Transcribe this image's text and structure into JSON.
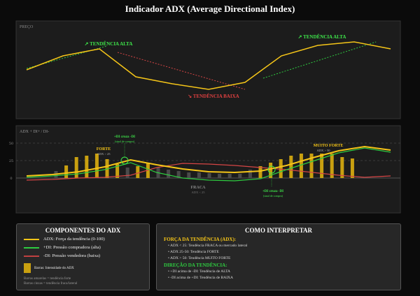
{
  "title": "Indicador ADX (Average Directional Index)",
  "colors": {
    "adx": "#f5c518",
    "di_plus": "#2ecc40",
    "di_minus": "#d64545",
    "bar_strong": "#c9a010",
    "bar_weak": "#4a4a4a"
  },
  "chart_data": [
    {
      "type": "line",
      "label": "PREÇO",
      "x": [
        0,
        1,
        2,
        3,
        4,
        5,
        6,
        7,
        8,
        9,
        10
      ],
      "price": [
        70,
        90,
        100,
        60,
        50,
        42,
        52,
        90,
        105,
        110,
        100
      ],
      "ylim": [
        0,
        140
      ],
      "annotations": [
        {
          "text": "↗ TENDÊNCIA ALTA",
          "kind": "up",
          "from": [
            0,
            72
          ],
          "to": [
            2.2,
            104
          ]
        },
        {
          "text": "↘ TENDÊNCIA BAIXA",
          "kind": "down",
          "from": [
            2.5,
            95
          ],
          "to": [
            6,
            42
          ]
        },
        {
          "text": "↗ TENDÊNCIA ALTA",
          "kind": "up",
          "from": [
            6.5,
            58
          ],
          "to": [
            9.6,
            110
          ]
        }
      ]
    },
    {
      "type": "line",
      "label": "ADX + DI+ / DI-",
      "yticks": [
        "50",
        "25",
        "0"
      ],
      "ytick_values": [
        50,
        25,
        0
      ],
      "ylim": [
        -50,
        75
      ],
      "x": [
        0,
        1,
        2,
        3,
        4,
        5,
        6,
        7,
        8,
        9,
        10,
        11,
        12,
        13,
        14
      ],
      "series": [
        {
          "name": "ADX",
          "values": [
            3,
            5,
            9,
            16,
            26,
            19,
            13,
            9,
            8,
            10,
            18,
            29,
            39,
            45,
            40
          ]
        },
        {
          "name": "+DI",
          "values": [
            1,
            3,
            6,
            12,
            22,
            8,
            0,
            -3,
            -4,
            -1,
            12,
            24,
            36,
            43,
            37
          ]
        },
        {
          "name": "-DI",
          "values": [
            -3,
            -2,
            0,
            1,
            4,
            15,
            21,
            20,
            18,
            15,
            12,
            8,
            4,
            1,
            3
          ]
        }
      ],
      "bars": [
        10,
        18,
        30,
        32,
        35,
        27,
        20,
        15,
        17,
        22,
        15,
        12,
        10,
        8,
        8,
        7,
        6,
        6,
        6,
        12,
        17,
        22,
        27,
        32,
        35,
        35,
        35,
        35,
        30,
        28
      ],
      "bars_strong": [
        false,
        true,
        true,
        true,
        true,
        true,
        true,
        false,
        true,
        true,
        false,
        false,
        false,
        false,
        false,
        false,
        false,
        false,
        false,
        false,
        true,
        true,
        true,
        true,
        true,
        true,
        true,
        true,
        true,
        true
      ],
      "labels": {
        "cross1_title": "+DI cruza -DI",
        "cross1_sub": "(sinal de compra)",
        "cross2_title": "+DI cruza -DI",
        "cross2_sub": "(sinal de compra)",
        "forte": "FORTE",
        "forte_sub": "ADX > 25",
        "fraca": "FRACA",
        "fraca_sub": "ADX < 25",
        "muito_forte": "MUITO FORTE",
        "muito_forte_sub": "ADX > 50"
      }
    }
  ],
  "legend": {
    "title": "COMPONENTES DO ADX",
    "items": [
      "ADX: Força da tendência (0-100)",
      "+DI: Pressão compradora (alta)",
      "-DI: Pressão vendedora (baixa)"
    ],
    "bars_label": "Barras: Intensidade do ADX",
    "notes": [
      "Barras amarelas = tendência forte",
      "Barras cinzas = tendência fraca/lateral"
    ]
  },
  "interpret": {
    "title": "COMO INTERPRETAR",
    "strength_heading": "FORÇA DA TENDÊNCIA (ADX):",
    "strength_items": [
      "• ADX < 25: Tendência FRACA ou mercado lateral",
      "• ADX 25-50: Tendência FORTE",
      "• ADX > 50: Tendência MUITO FORTE"
    ],
    "direction_heading": "DIREÇÃO DA TENDÊNCIA:",
    "direction_items": [
      "• +DI acima de -DI: Tendência de ALTA",
      "• -DI acima de +DI: Tendência de BAIXA"
    ]
  }
}
